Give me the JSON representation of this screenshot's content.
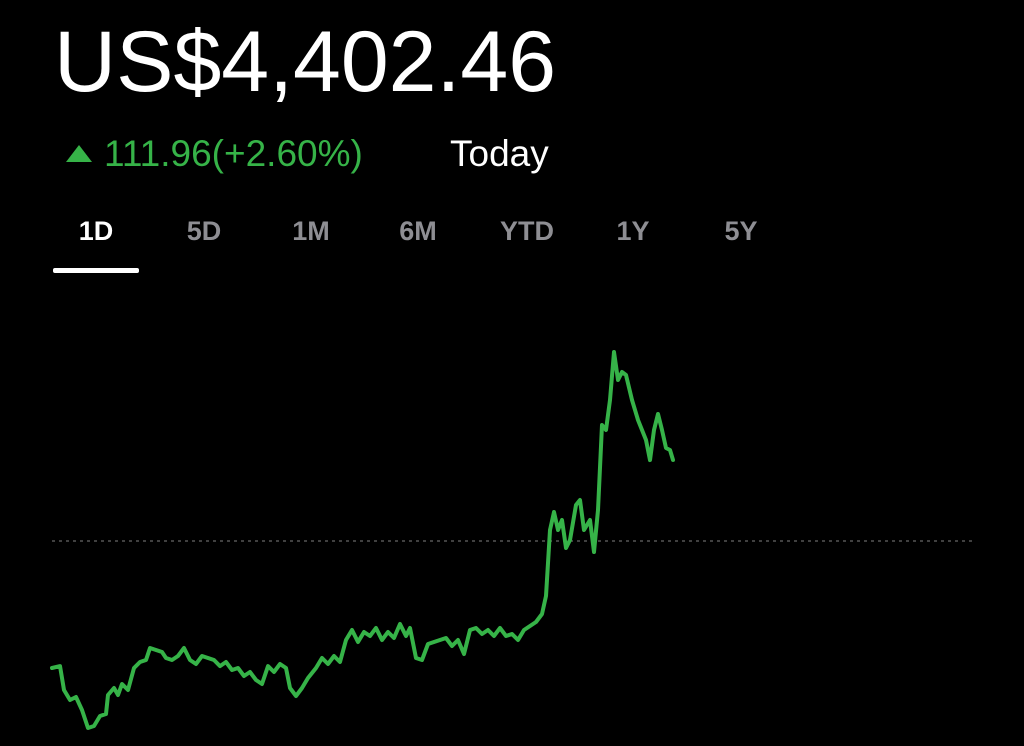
{
  "header": {
    "price": "US$4,402.46",
    "change": "111.96(+2.60%)",
    "period": "Today"
  },
  "tabs": {
    "items": [
      "1D",
      "5D",
      "1M",
      "6M",
      "YTD",
      "1Y",
      "5Y"
    ],
    "selected": 0
  },
  "chart_data": {
    "type": "line",
    "x": [
      0,
      8,
      12,
      18,
      24,
      30,
      36,
      42,
      48,
      54,
      56,
      62,
      66,
      70,
      76,
      82,
      88,
      94,
      98,
      104,
      110,
      114,
      120,
      126,
      132,
      138,
      144,
      150,
      156,
      162,
      168,
      174,
      180,
      186,
      192,
      198,
      204,
      210,
      216,
      222,
      228,
      234,
      238,
      244,
      250,
      256,
      264,
      270,
      276,
      282,
      288,
      294,
      300,
      306,
      312,
      318,
      324,
      330,
      336,
      342,
      348,
      354,
      358,
      364,
      370,
      376,
      382,
      388,
      394,
      400,
      406,
      412,
      418,
      424,
      430,
      436,
      442,
      448,
      454,
      460,
      466,
      472,
      478,
      484,
      490,
      494,
      498,
      502,
      506,
      510,
      514,
      518,
      524,
      528,
      532,
      538,
      542,
      546,
      550,
      554,
      558,
      562,
      566,
      570,
      574,
      580,
      586,
      590,
      594,
      598,
      602,
      606,
      610,
      614,
      618,
      621
    ],
    "values": [
      4115.0,
      4117.7,
      4084.6,
      4070.8,
      4074.9,
      4056.9,
      4032.1,
      4034.8,
      4048.6,
      4051.4,
      4077.7,
      4087.3,
      4077.7,
      4092.9,
      4084.6,
      4115.0,
      4123.3,
      4126.0,
      4142.6,
      4139.9,
      4137.1,
      4128.8,
      4126.0,
      4131.6,
      4142.6,
      4126.0,
      4120.5,
      4131.6,
      4128.8,
      4126.0,
      4117.7,
      4123.3,
      4112.2,
      4115.0,
      4103.9,
      4109.5,
      4098.4,
      4092.9,
      4117.7,
      4109.5,
      4120.5,
      4115.0,
      4087.3,
      4076.3,
      4087.3,
      4101.2,
      4115.0,
      4128.8,
      4120.5,
      4131.6,
      4123.3,
      4153.7,
      4167.5,
      4150.9,
      4164.7,
      4159.2,
      4170.3,
      4153.7,
      4164.7,
      4156.4,
      4175.8,
      4159.2,
      4170.3,
      4128.8,
      4126.0,
      4148.2,
      4150.9,
      4153.7,
      4156.4,
      4145.4,
      4153.7,
      4134.3,
      4167.5,
      4170.3,
      4162.0,
      4167.5,
      4159.2,
      4170.3,
      4159.2,
      4162.0,
      4153.7,
      4167.5,
      4173.0,
      4178.6,
      4189.6,
      4214.5,
      4305.7,
      4330.6,
      4305.7,
      4319.5,
      4280.8,
      4291.9,
      4340.3,
      4347.2,
      4305.7,
      4319.5,
      4275.3,
      4333.3,
      4450.8,
      4443.9,
      4485.4,
      4551.7,
      4513.0,
      4524.1,
      4519.9,
      4485.4,
      4457.7,
      4443.9,
      4430.1,
      4402.4,
      4443.9,
      4466.0,
      4443.9,
      4419.0,
      4416.3,
      4402.46
    ],
    "color": "#36b348",
    "reference_line": 4290.5,
    "xlim": [
      0,
      920
    ],
    "ylim": [
      4015.5,
      4623.6
    ]
  }
}
